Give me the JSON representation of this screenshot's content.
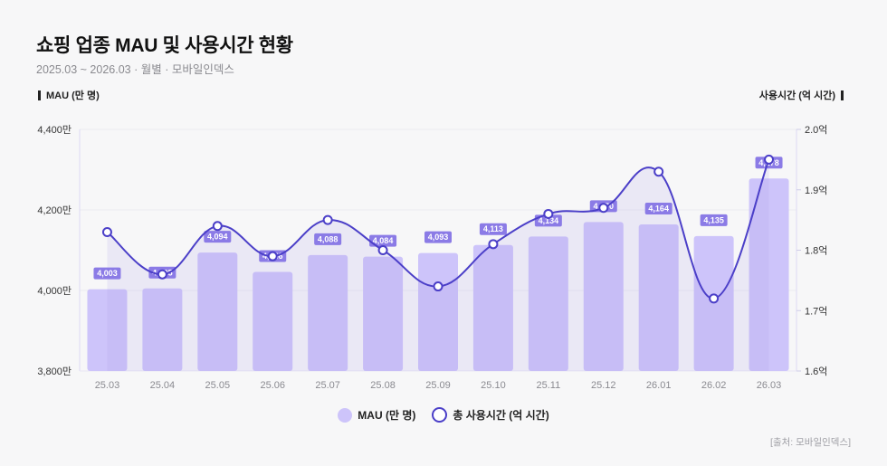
{
  "header": {
    "title": "쇼핑 업종 MAU 및 사용시간 현황",
    "subtitle": "2025.03 ~ 2026.03 · 월별 · 모바일인덱스"
  },
  "axis_titles": {
    "left": "MAU (만 명)",
    "right": "사용시간 (억 시간)"
  },
  "legend": {
    "bar_label": "MAU (만 명)",
    "line_label": "총 사용시간 (억 시간)"
  },
  "source": "[출처: 모바일인덱스]",
  "colors": {
    "bar": "#cdc4fa",
    "line": "#4b3fc8",
    "label_bg": "#8b7be6",
    "area": "#e6e1f7"
  },
  "chart_data": {
    "type": "bar+line",
    "title": "쇼핑 업종 MAU 및 사용시간 현황",
    "categories": [
      "25.03",
      "25.04",
      "25.05",
      "25.06",
      "25.07",
      "25.08",
      "25.09",
      "25.10",
      "25.11",
      "25.12",
      "26.01",
      "26.02",
      "26.03"
    ],
    "series": [
      {
        "name": "MAU (만 명)",
        "type": "bar",
        "axis": "left",
        "values": [
          4003,
          4005,
          4094,
          4046,
          4088,
          4084,
          4093,
          4113,
          4134,
          4170,
          4164,
          4135,
          4278
        ],
        "labels": [
          "4,003",
          "4,005",
          "4,094",
          "4,046",
          "4,088",
          "4,084",
          "4,093",
          "4,113",
          "4,134",
          "4,170",
          "4,164",
          "4,135",
          "4,278"
        ]
      },
      {
        "name": "총 사용시간 (억 시간)",
        "type": "line",
        "axis": "right",
        "values": [
          1.83,
          1.76,
          1.84,
          1.79,
          1.85,
          1.8,
          1.74,
          1.81,
          1.86,
          1.87,
          1.93,
          1.72,
          1.95
        ]
      }
    ],
    "left_axis": {
      "label": "MAU (만 명)",
      "range": [
        3800,
        4400
      ],
      "ticks": [
        3800,
        4000,
        4200,
        4400
      ],
      "tick_labels": [
        "3,800만",
        "4,000만",
        "4,200만",
        "4,400만"
      ]
    },
    "right_axis": {
      "label": "사용시간 (억 시간)",
      "range": [
        1.6,
        2.0
      ],
      "ticks": [
        1.6,
        1.7,
        1.8,
        1.9,
        2.0
      ],
      "tick_labels": [
        "1.6억",
        "1.7억",
        "1.8억",
        "1.9억",
        "2.0억"
      ]
    },
    "grid": true,
    "legend_position": "bottom-center"
  }
}
